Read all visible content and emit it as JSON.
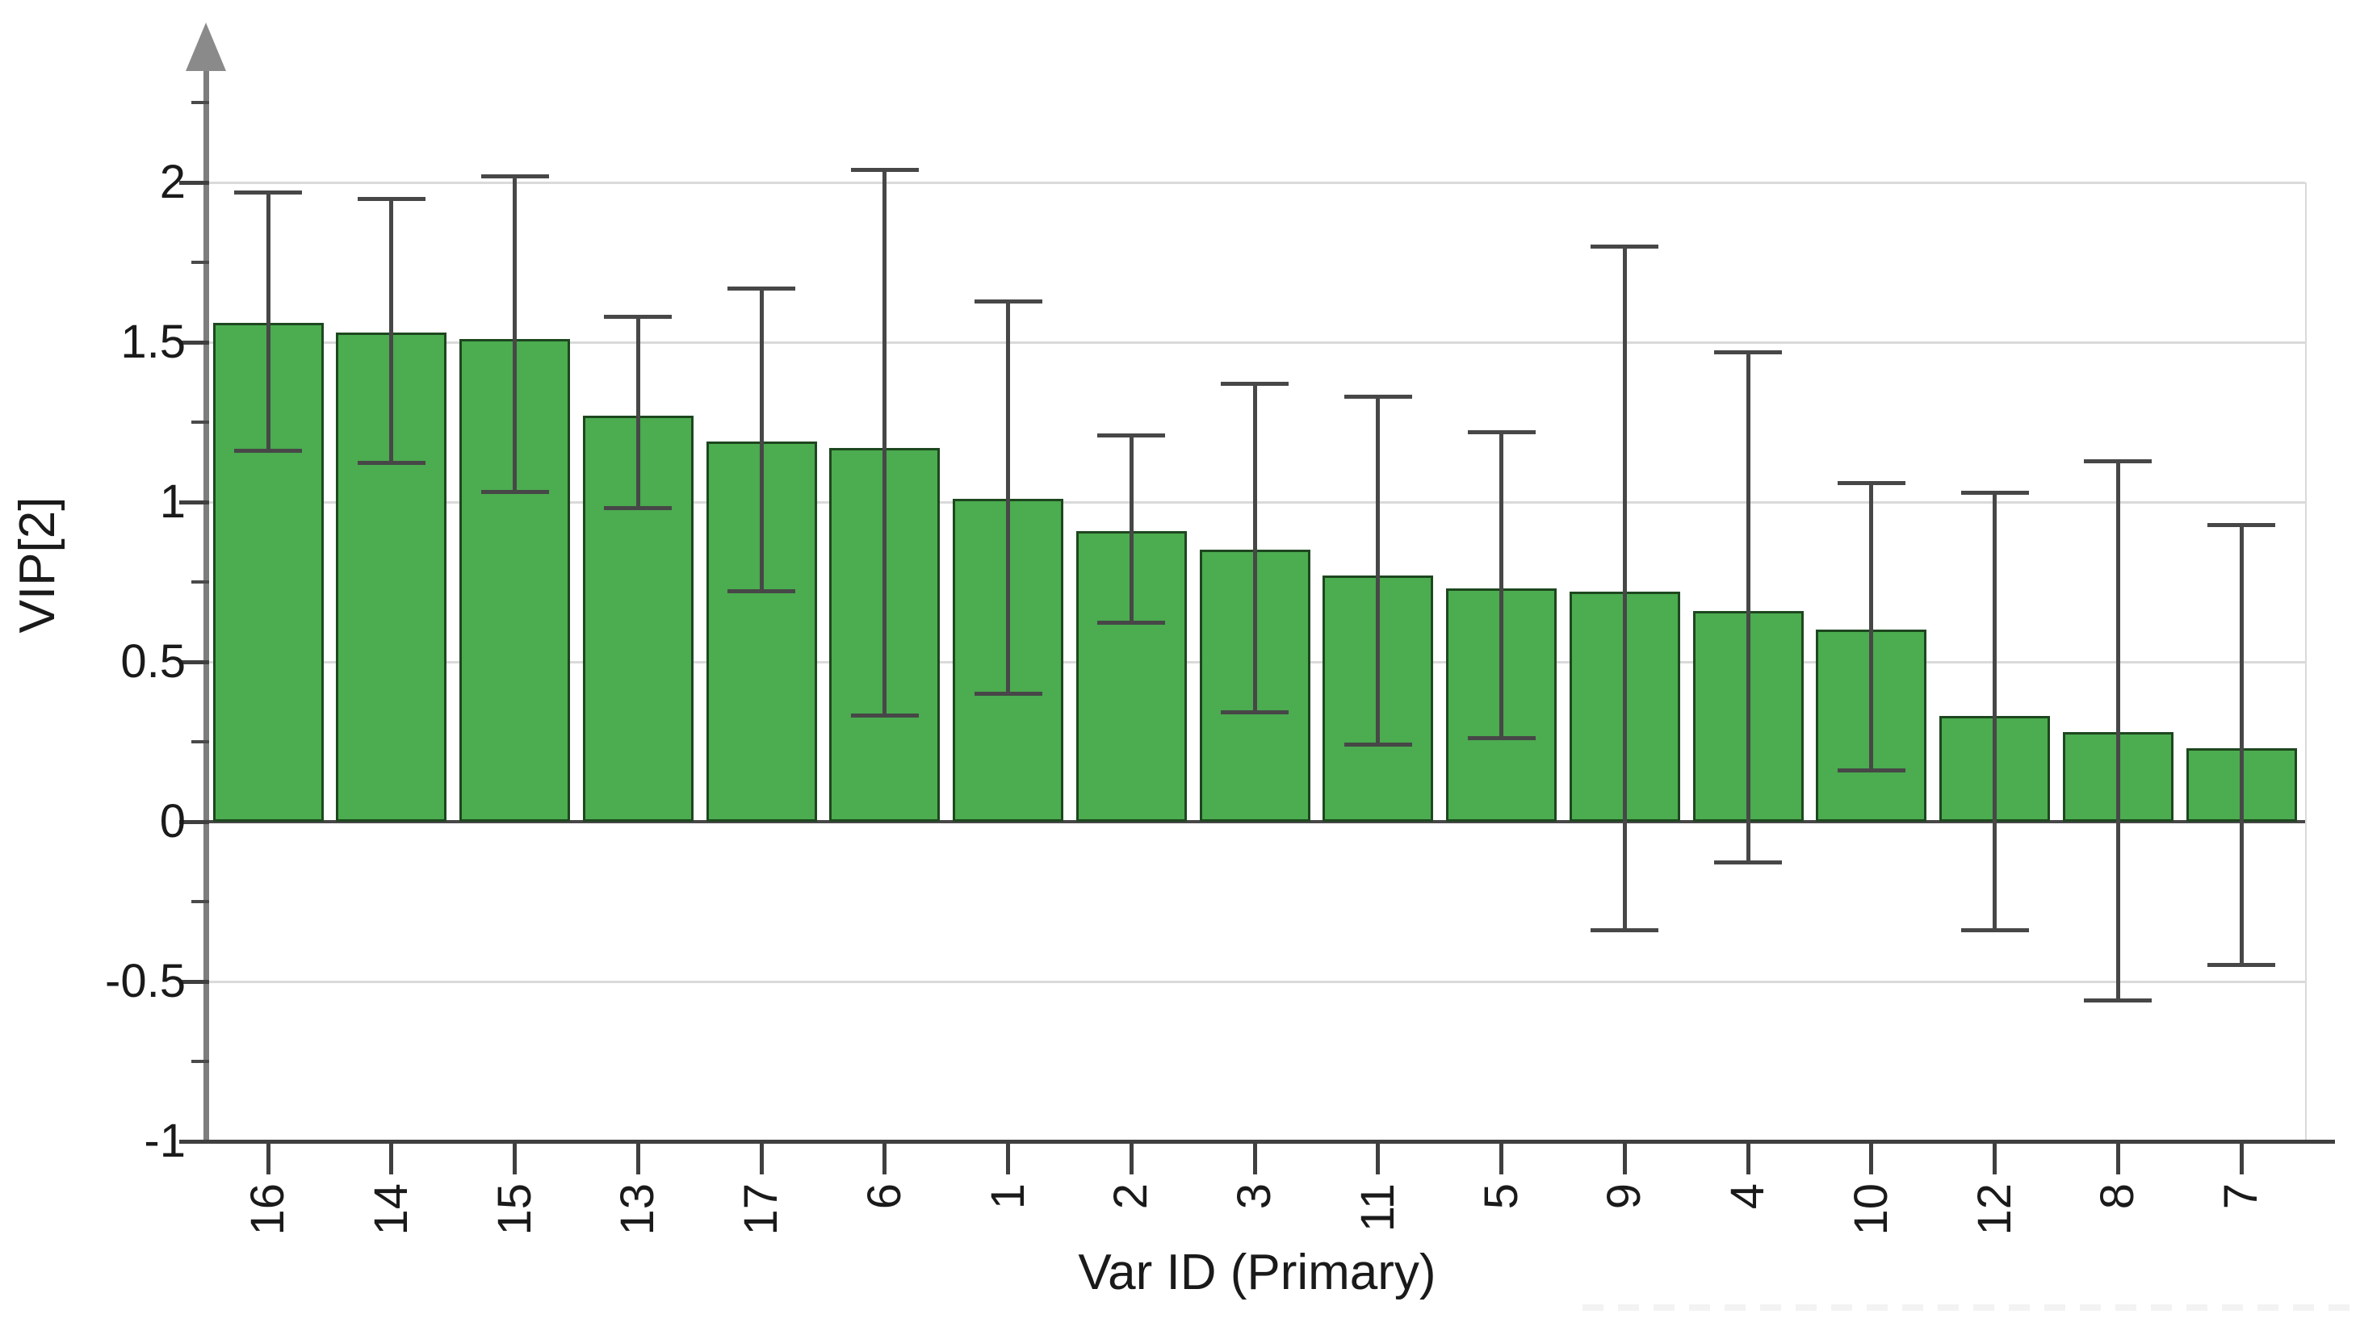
{
  "chart_data": {
    "type": "bar",
    "title": "",
    "xlabel": "Var ID (Primary)",
    "ylabel": "VIP[2]",
    "categories": [
      "16",
      "14",
      "15",
      "13",
      "17",
      "6",
      "1",
      "2",
      "3",
      "11",
      "5",
      "9",
      "4",
      "10",
      "12",
      "8",
      "7"
    ],
    "values": [
      1.56,
      1.53,
      1.51,
      1.27,
      1.19,
      1.17,
      1.01,
      0.91,
      0.85,
      0.77,
      0.73,
      0.72,
      0.66,
      0.6,
      0.33,
      0.28,
      0.23
    ],
    "error_low": [
      1.16,
      1.12,
      1.03,
      0.98,
      0.72,
      0.33,
      0.4,
      0.62,
      0.34,
      0.24,
      0.26,
      -0.34,
      -0.13,
      0.16,
      -0.34,
      -0.56,
      -0.45
    ],
    "error_high": [
      1.97,
      1.95,
      2.02,
      1.58,
      1.67,
      2.04,
      1.63,
      1.21,
      1.37,
      1.33,
      1.22,
      1.8,
      1.47,
      1.06,
      1.03,
      1.13,
      0.93
    ],
    "ylim": [
      -1,
      2.5
    ],
    "yticks": [
      2,
      1.5,
      1,
      0.5,
      0,
      -0.5,
      -1
    ],
    "ytick_labels": [
      "2",
      "1.5",
      "1",
      "0.5",
      "0",
      "-0.5",
      "-1"
    ],
    "minor_yticks": [
      2.25,
      1.75,
      1.25,
      0.75,
      0.25,
      -0.25,
      -0.75
    ],
    "gridline_values": [
      2,
      1.5,
      1,
      0.5,
      -0.5
    ],
    "grid": "horizontal, light gray, every 0.5",
    "legend": "none",
    "error_bars": "asymmetric confidence intervals with flat caps",
    "colors": {
      "bar_fill": "#4bac50",
      "bar_border": "#1e471f",
      "error_bar": "#474747",
      "y_axis": "#7d7d7d",
      "x_axis": "#3f3f3f",
      "zero_line": "#474747",
      "gridline": "#dadada",
      "tick_text": "#1a1a1a",
      "background": "#ffffff"
    }
  }
}
